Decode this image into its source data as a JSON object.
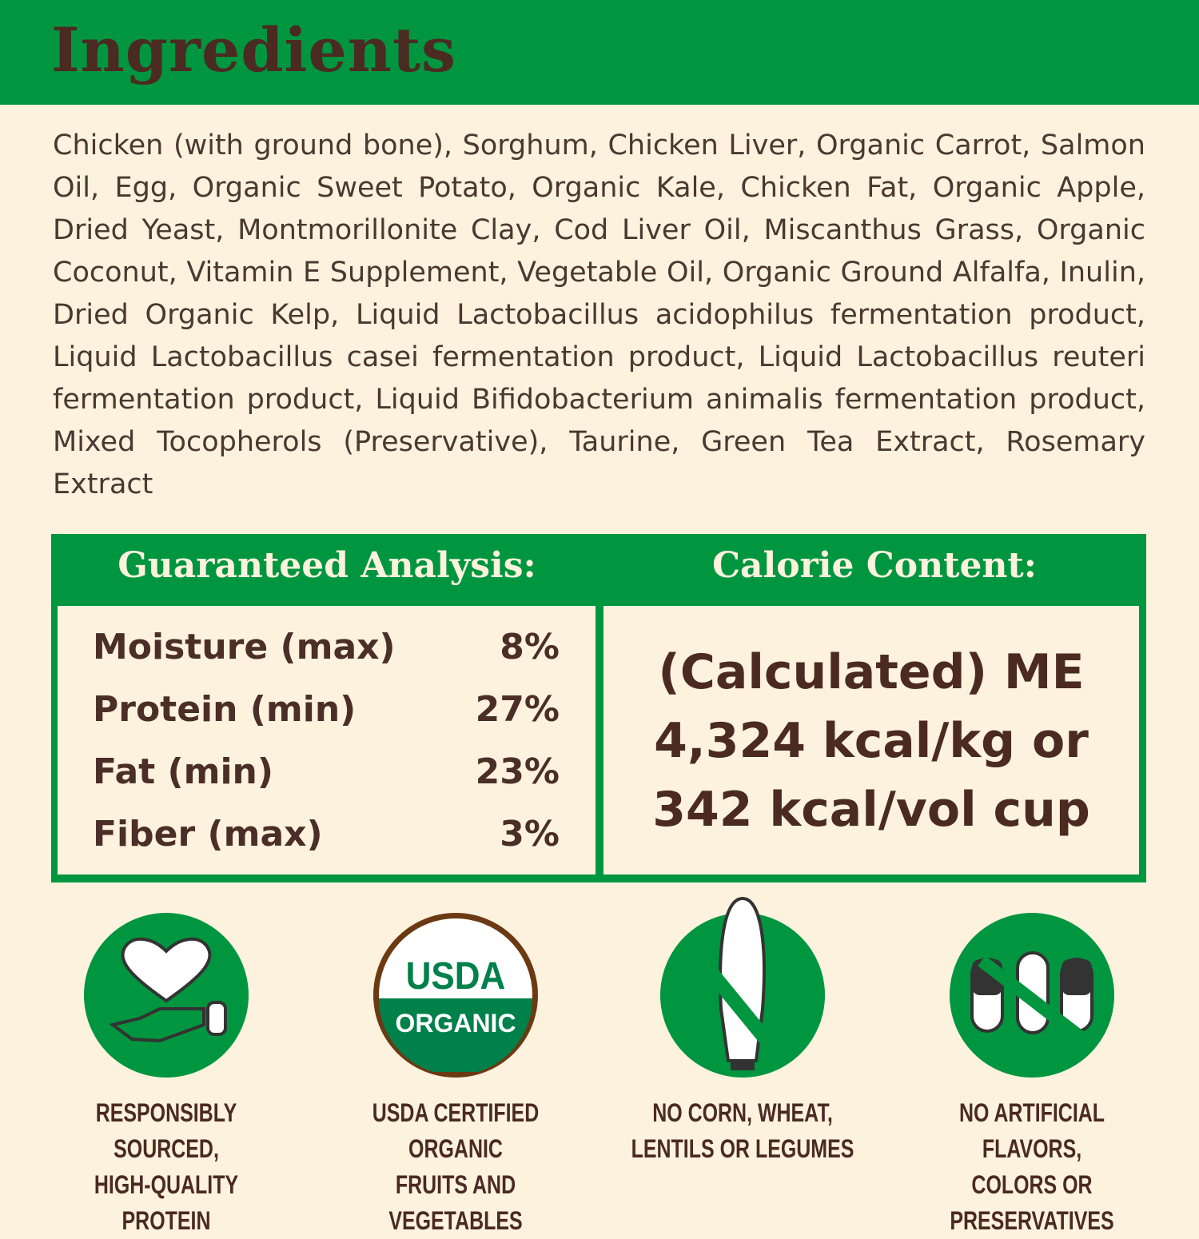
{
  "header": {
    "title": "Ingredients"
  },
  "ingredients": "Chicken (with ground bone), Sorghum, Chicken Liver, Organic Carrot, Salmon Oil, Egg, Organic Sweet Potato, Organic Kale, Chicken Fat, Organic Apple, Dried Yeast, Montmorillonite Clay, Cod Liver Oil, Miscanthus Grass, Organic Coconut, Vitamin E Supplement, Vegetable Oil, Organic Ground Alfalfa, Inulin, Dried Organic Kelp, Liquid Lactobacillus acidophilus fermentation product, Liquid Lactobacillus casei fermentation product, Liquid Lactobacillus reuteri fermentation product, Liquid Bifidobacterium animalis fermentation product, Mixed Tocopherols (Preservative), Taurine, Green Tea Extract, Rosemary Extract",
  "analysis": {
    "title": "Guaranteed Analysis:",
    "rows": [
      {
        "label": "Moisture (max)",
        "value": "8%"
      },
      {
        "label": "Protein (min)",
        "value": "27%"
      },
      {
        "label": "Fat (min)",
        "value": "23%"
      },
      {
        "label": "Fiber (max)",
        "value": "3%"
      }
    ]
  },
  "calorie": {
    "title": "Calorie Content:",
    "lines": [
      "(Calculated) ME",
      "4,324 kcal/kg or",
      "342 kcal/vol cup"
    ]
  },
  "badges": [
    {
      "icon": "heart-hand-icon",
      "line1": "RESPONSIBLY SOURCED,",
      "line2": "HIGH-QUALITY PROTEIN"
    },
    {
      "icon": "usda-organic-seal",
      "seal_top": "USDA",
      "seal_bottom": "ORGANIC",
      "line1": "USDA CERTIFIED ORGANIC",
      "line2": "FRUITS AND VEGETABLES"
    },
    {
      "icon": "no-corn-icon",
      "line1": "NO CORN, WHEAT,",
      "line2": "LENTILS OR LEGUMES"
    },
    {
      "icon": "no-capsules-icon",
      "line1": "NO ARTIFICIAL FLAVORS,",
      "line2": "COLORS OR PRESERVATIVES"
    }
  ],
  "colors": {
    "green": "#00963f",
    "brown": "#4b2a22",
    "background": "#fdf2dd"
  }
}
